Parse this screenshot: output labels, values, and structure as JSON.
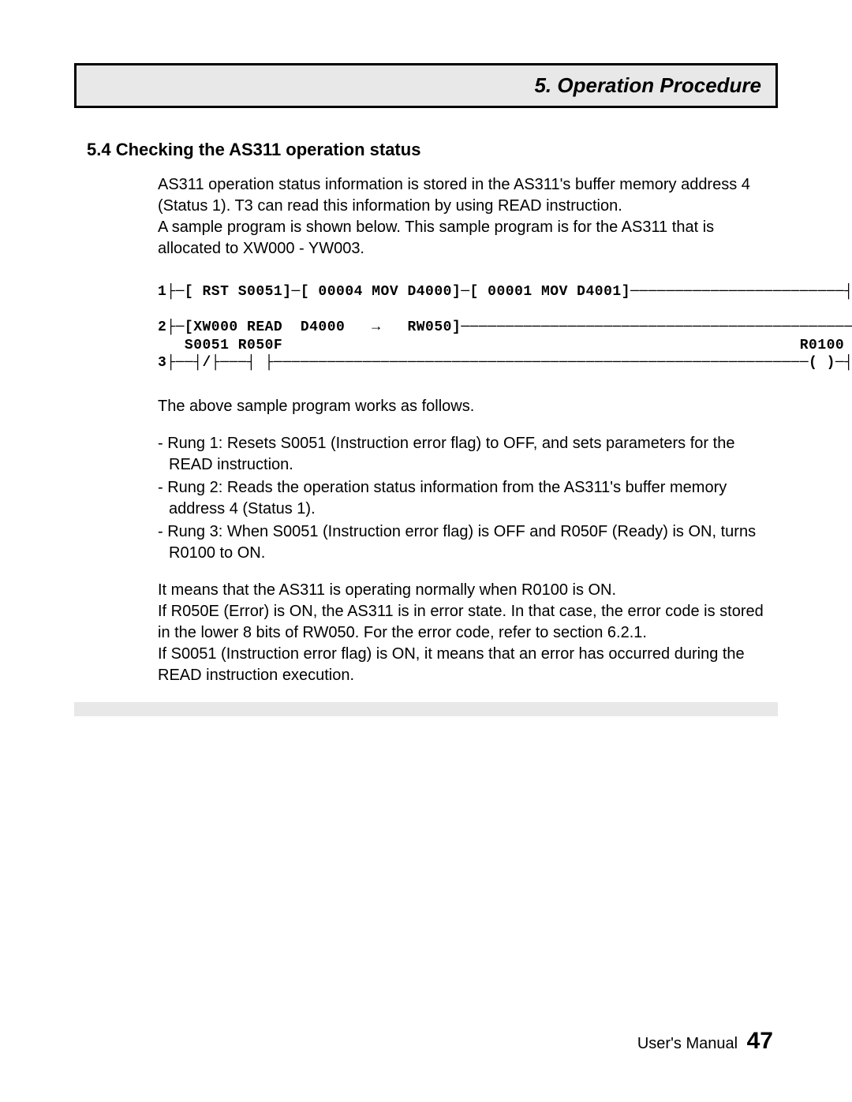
{
  "chapter": {
    "title": "5. Operation Procedure"
  },
  "section": {
    "title": "5.4  Checking the AS311 operation status"
  },
  "intro": "AS311 operation status information is stored in the AS311's buffer memory address 4 (Status 1). T3 can read this information by using READ instruction.\nA sample program is shown below. This sample program is for the AS311 that is allocated to XW000 - YW003.",
  "ladder": {
    "type": "ladder-diagram",
    "font": "Courier New",
    "fontsize_pt": 14,
    "text_color": "#000000",
    "background_color": "#ffffff",
    "line1": "1├─[ RST S0051]─[ 00004 MOV D4000]─[ 00001 MOV D4001]────────────────────────┤",
    "line2": "2├─[XW000 READ  D4000   →   RW050]────────────────────────────────────────────┤",
    "line3a": "   S0051 R050F                                                          R0100",
    "line3b": "3├──┤/├───┤ ├────────────────────────────────────────────────────────────( )─┤"
  },
  "works_as": "The above sample program works as follows.",
  "rungs": [
    "- Rung 1: Resets S0051 (Instruction error flag) to OFF, and sets parameters for the READ instruction.",
    "- Rung 2: Reads the operation status information from the AS311's buffer memory address 4 (Status 1).",
    "- Rung 3: When S0051 (Instruction error flag) is OFF and R050F (Ready) is ON, turns R0100 to ON."
  ],
  "explain": "It means that the AS311 is operating normally when R0100 is ON.\nIf R050E (Error) is ON, the AS311 is in error state. In that case,  the error code is stored in the lower 8 bits of RW050. For the error code, refer to section 6.2.1.\nIf S0051 (Instruction error flag) is ON, it means that an error has occurred during the READ instruction execution.",
  "footer": {
    "label": "User's Manual",
    "page": "47"
  },
  "colors": {
    "box_bg": "#e8e8e8",
    "border": "#000000",
    "text": "#000000",
    "page_bg": "#ffffff"
  }
}
